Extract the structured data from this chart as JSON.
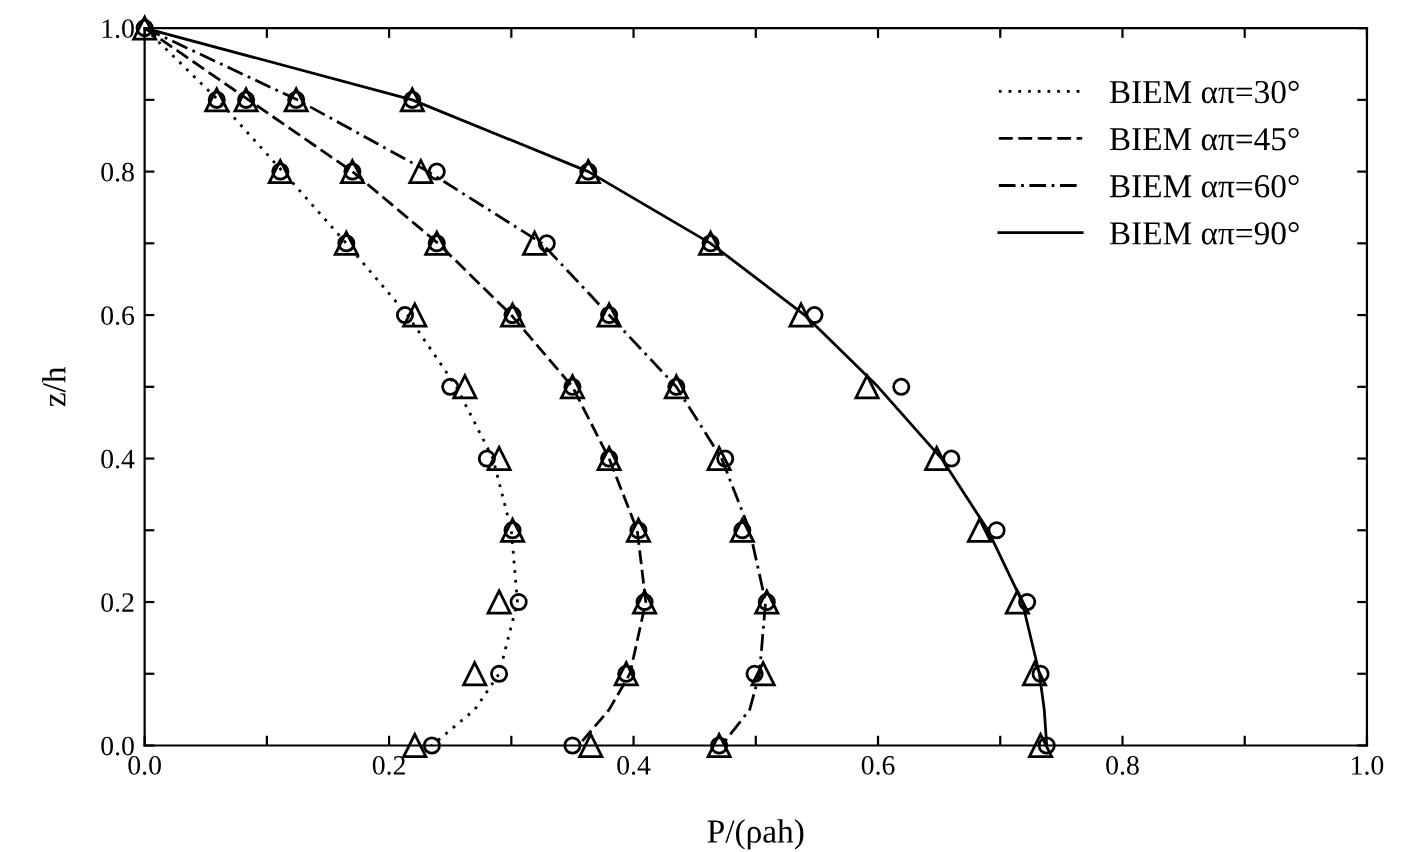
{
  "chart_data": {
    "type": "line",
    "xlabel": "P/(ρah)",
    "ylabel": "z/h",
    "xlim": [
      0,
      1
    ],
    "ylim": [
      0,
      1
    ],
    "xticks": [
      {
        "value": 0,
        "label": "0.0"
      },
      {
        "value": 0.1,
        "label": null
      },
      {
        "value": 0.2,
        "label": "0.2"
      },
      {
        "value": 0.3,
        "label": null
      },
      {
        "value": 0.4,
        "label": "0.4"
      },
      {
        "value": 0.5,
        "label": null
      },
      {
        "value": 0.6,
        "label": "0.6"
      },
      {
        "value": 0.7,
        "label": null
      },
      {
        "value": 0.8,
        "label": "0.8"
      },
      {
        "value": 0.9,
        "label": null
      },
      {
        "value": 1,
        "label": "1.0"
      }
    ],
    "yticks": [
      {
        "value": 0,
        "label": "0.0"
      },
      {
        "value": 0.1,
        "label": null
      },
      {
        "value": 0.2,
        "label": "0.2"
      },
      {
        "value": 0.3,
        "label": null
      },
      {
        "value": 0.4,
        "label": "0.4"
      },
      {
        "value": 0.5,
        "label": null
      },
      {
        "value": 0.6,
        "label": "0.6"
      },
      {
        "value": 0.7,
        "label": null
      },
      {
        "value": 0.8,
        "label": "0.8"
      },
      {
        "value": 0.9,
        "label": null
      },
      {
        "value": 1,
        "label": "1.0"
      }
    ],
    "grid": false,
    "legend": "top right",
    "series": [
      {
        "name": "BIEM απ=30°",
        "line_style": "dotted",
        "color": "#000000",
        "x": [
          0,
          0.06,
          0.113,
          0.165,
          0.215,
          0.255,
          0.285,
          0.3,
          0.305,
          0.29,
          0.27,
          0.235
        ],
        "values": [
          1,
          0.9,
          0.8,
          0.7,
          0.6,
          0.5,
          0.4,
          0.3,
          0.2,
          0.1,
          0.05,
          0
        ]
      },
      {
        "name": "BIEM απ=45°",
        "line_style": "dashed",
        "color": "#000000",
        "x": [
          0,
          0.085,
          0.17,
          0.24,
          0.3,
          0.35,
          0.38,
          0.403,
          0.41,
          0.397,
          0.38,
          0.355
        ],
        "values": [
          1,
          0.9,
          0.8,
          0.7,
          0.6,
          0.5,
          0.4,
          0.3,
          0.2,
          0.1,
          0.05,
          0
        ]
      },
      {
        "name": "BIEM απ=60°",
        "line_style": "dashdot",
        "color": "#000000",
        "x": [
          0,
          0.125,
          0.232,
          0.325,
          0.38,
          0.435,
          0.472,
          0.495,
          0.508,
          0.503,
          0.495,
          0.472
        ],
        "values": [
          1,
          0.9,
          0.8,
          0.7,
          0.6,
          0.5,
          0.4,
          0.3,
          0.2,
          0.1,
          0.05,
          0
        ]
      },
      {
        "name": "BIEM απ=90°",
        "line_style": "solid",
        "color": "#000000",
        "x": [
          0,
          0.219,
          0.363,
          0.463,
          0.54,
          0.6,
          0.652,
          0.69,
          0.718,
          0.732,
          0.736,
          0.738
        ],
        "values": [
          1,
          0.9,
          0.8,
          0.7,
          0.6,
          0.5,
          0.4,
          0.3,
          0.2,
          0.1,
          0.05,
          0
        ]
      },
      {
        "type": "scatter",
        "marker": "circle",
        "color": "#000000",
        "x": [
          0,
          0.059,
          0.111,
          0.165,
          0.213,
          0.25,
          0.28,
          0.301,
          0.306,
          0.29,
          0.235,
          0.083,
          0.17,
          0.239,
          0.301,
          0.35,
          0.38,
          0.404,
          0.409,
          0.394,
          0.35,
          0.124,
          0.239,
          0.329,
          0.38,
          0.435,
          0.475,
          0.489,
          0.509,
          0.499,
          0.47,
          0.219,
          0.363,
          0.463,
          0.548,
          0.619,
          0.66,
          0.697,
          0.722,
          0.733,
          0.738
        ],
        "values": [
          1,
          0.9,
          0.8,
          0.7,
          0.6,
          0.5,
          0.4,
          0.3,
          0.2,
          0.1,
          0,
          0.9,
          0.8,
          0.7,
          0.6,
          0.5,
          0.4,
          0.3,
          0.2,
          0.1,
          0,
          0.9,
          0.8,
          0.7,
          0.6,
          0.5,
          0.4,
          0.3,
          0.2,
          0.1,
          0,
          0.9,
          0.8,
          0.7,
          0.6,
          0.5,
          0.4,
          0.3,
          0.2,
          0.1,
          0
        ]
      },
      {
        "type": "scatter",
        "marker": "triangle",
        "color": "#000000",
        "x": [
          0,
          0.059,
          0.111,
          0.165,
          0.221,
          0.262,
          0.29,
          0.301,
          0.29,
          0.27,
          0.221,
          0.083,
          0.17,
          0.239,
          0.301,
          0.35,
          0.38,
          0.404,
          0.409,
          0.394,
          0.365,
          0.124,
          0.226,
          0.319,
          0.38,
          0.435,
          0.47,
          0.489,
          0.509,
          0.506,
          0.47,
          0.219,
          0.363,
          0.463,
          0.537,
          0.591,
          0.648,
          0.683,
          0.714,
          0.728,
          0.733
        ],
        "values": [
          1,
          0.9,
          0.8,
          0.7,
          0.6,
          0.5,
          0.4,
          0.3,
          0.2,
          0.1,
          0,
          0.9,
          0.8,
          0.7,
          0.6,
          0.5,
          0.4,
          0.3,
          0.2,
          0.1,
          0,
          0.9,
          0.8,
          0.7,
          0.6,
          0.5,
          0.4,
          0.3,
          0.2,
          0.1,
          0,
          0.9,
          0.8,
          0.7,
          0.6,
          0.5,
          0.4,
          0.3,
          0.2,
          0.1,
          0
        ]
      }
    ]
  }
}
